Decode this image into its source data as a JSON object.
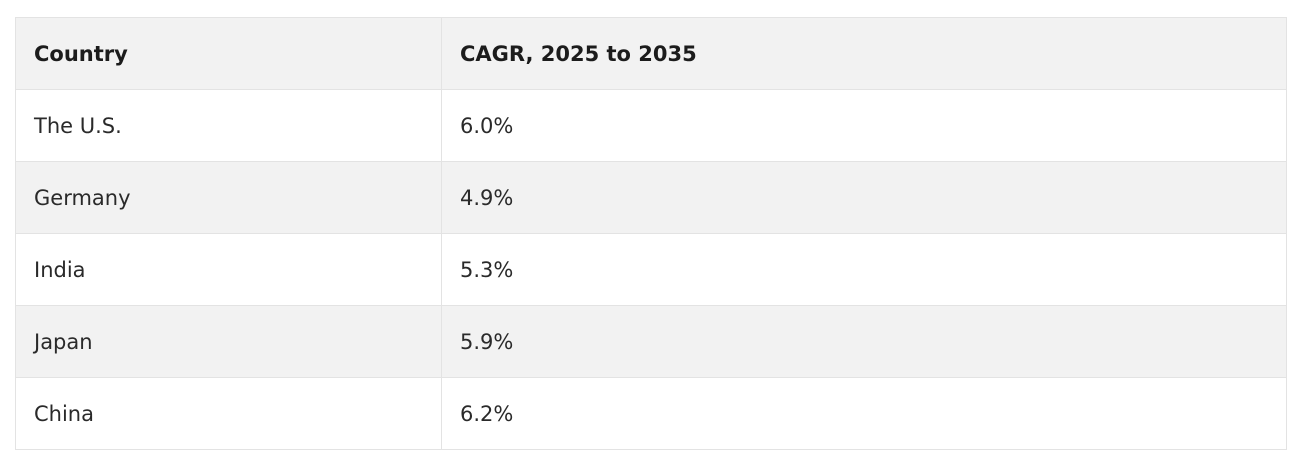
{
  "table": {
    "headers": {
      "country": "Country",
      "cagr": "CAGR, 2025 to 2035"
    },
    "rows": [
      {
        "country": "The U.S.",
        "cagr": "6.0%"
      },
      {
        "country": "Germany",
        "cagr": "4.9%"
      },
      {
        "country": "India",
        "cagr": "5.3%"
      },
      {
        "country": "Japan",
        "cagr": "5.9%"
      },
      {
        "country": "China",
        "cagr": "6.2%"
      }
    ],
    "colors": {
      "shaded_row": "#f2f2f2",
      "plain_row": "#ffffff",
      "border": "#e3e3e3"
    }
  }
}
